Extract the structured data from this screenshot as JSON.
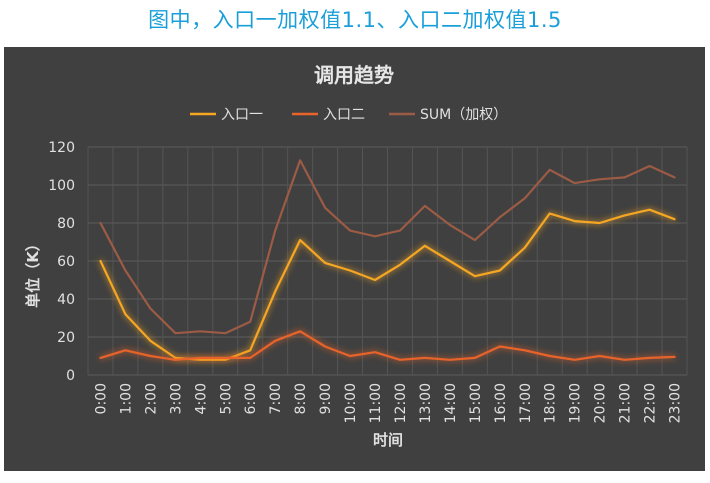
{
  "caption": "图中，入口一加权值1.1、入口二加权值1.5",
  "chart_data": {
    "type": "line",
    "title": "调用趋势",
    "xlabel": "时间",
    "ylabel": "单位（K）",
    "ylim": [
      0,
      120
    ],
    "yticks": [
      0,
      20,
      40,
      60,
      80,
      100,
      120
    ],
    "grid": true,
    "legend_position": "top",
    "categories": [
      "0:00",
      "1:00",
      "2:00",
      "3:00",
      "4:00",
      "5:00",
      "6:00",
      "7:00",
      "8:00",
      "9:00",
      "10:00",
      "11:00",
      "12:00",
      "13:00",
      "14:00",
      "15:00",
      "16:00",
      "17:00",
      "18:00",
      "19:00",
      "20:00",
      "21:00",
      "22:00",
      "23:00"
    ],
    "series": [
      {
        "name": "入口一",
        "color": "#f5a623",
        "glow": true,
        "values": [
          60,
          32,
          18,
          9,
          8,
          8,
          13,
          44,
          71,
          59,
          55,
          50,
          58,
          68,
          60,
          52,
          55,
          67,
          85,
          81,
          80,
          84,
          87,
          82
        ]
      },
      {
        "name": "入口二",
        "color": "#e8642a",
        "glow": true,
        "values": [
          9,
          13,
          10,
          8,
          9,
          9,
          9,
          18,
          23,
          15,
          10,
          12,
          8,
          9,
          8,
          9,
          15,
          13,
          10,
          8,
          10,
          8,
          9,
          9.5
        ]
      },
      {
        "name": "SUM（加权）",
        "color": "#9c5b45",
        "glow": false,
        "values": [
          80,
          55,
          35,
          22,
          23,
          22,
          28,
          76,
          113,
          88,
          76,
          73,
          76,
          89,
          79,
          71,
          83,
          93,
          108,
          101,
          103,
          104,
          110,
          104
        ]
      }
    ]
  }
}
